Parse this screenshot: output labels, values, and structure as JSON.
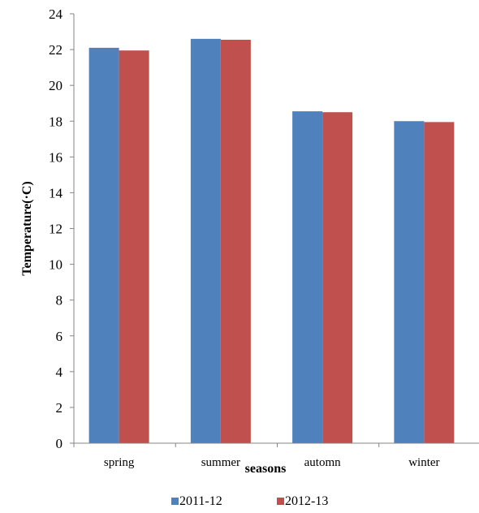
{
  "chart_data": {
    "type": "bar",
    "title": "",
    "xlabel": "seasons",
    "ylabel": "Temperature(·C)",
    "ylim": [
      0,
      24
    ],
    "ytick_step": 2,
    "grid": false,
    "legend_position": "bottom",
    "categories": [
      "spring",
      "summer",
      "automn",
      "winter"
    ],
    "series": [
      {
        "name": "2011-12",
        "color": "#4f81bd",
        "values": [
          22.1,
          22.6,
          18.55,
          18.0
        ]
      },
      {
        "name": "2012-13",
        "color": "#c0504d",
        "values": [
          21.95,
          22.55,
          18.5,
          17.95
        ]
      }
    ]
  }
}
